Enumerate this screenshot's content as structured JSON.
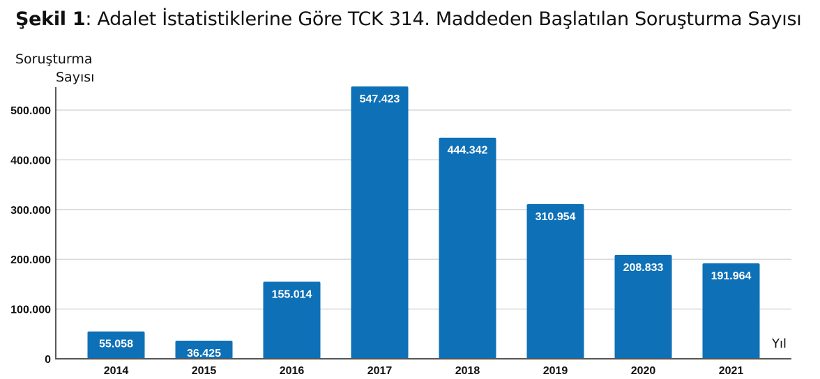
{
  "chart_data": {
    "type": "bar",
    "title_prefix": "Şekil 1",
    "title": ": Adalet İstatistiklerine Göre TCK 314. Maddeden Başlatılan Soruşturma Sayısı",
    "ylabel_line1": "Soruşturma",
    "ylabel_line2": "Sayısı",
    "xlabel": "Yıl",
    "categories": [
      "2014",
      "2015",
      "2016",
      "2017",
      "2018",
      "2019",
      "2020",
      "2021"
    ],
    "values": [
      55058,
      36425,
      155014,
      547423,
      444342,
      310954,
      208833,
      191964
    ],
    "value_labels": [
      "55.058",
      "36.425",
      "155.014",
      "547.423",
      "444.342",
      "310.954",
      "208.833",
      "191.964"
    ],
    "yticks": [
      0,
      100000,
      200000,
      300000,
      400000,
      500000
    ],
    "ytick_labels": [
      "0",
      "100.000",
      "200.000",
      "300.000",
      "400.000",
      "500.000"
    ],
    "ylim": [
      0,
      550000
    ],
    "grid": true,
    "bar_color": "#0e70b6"
  }
}
